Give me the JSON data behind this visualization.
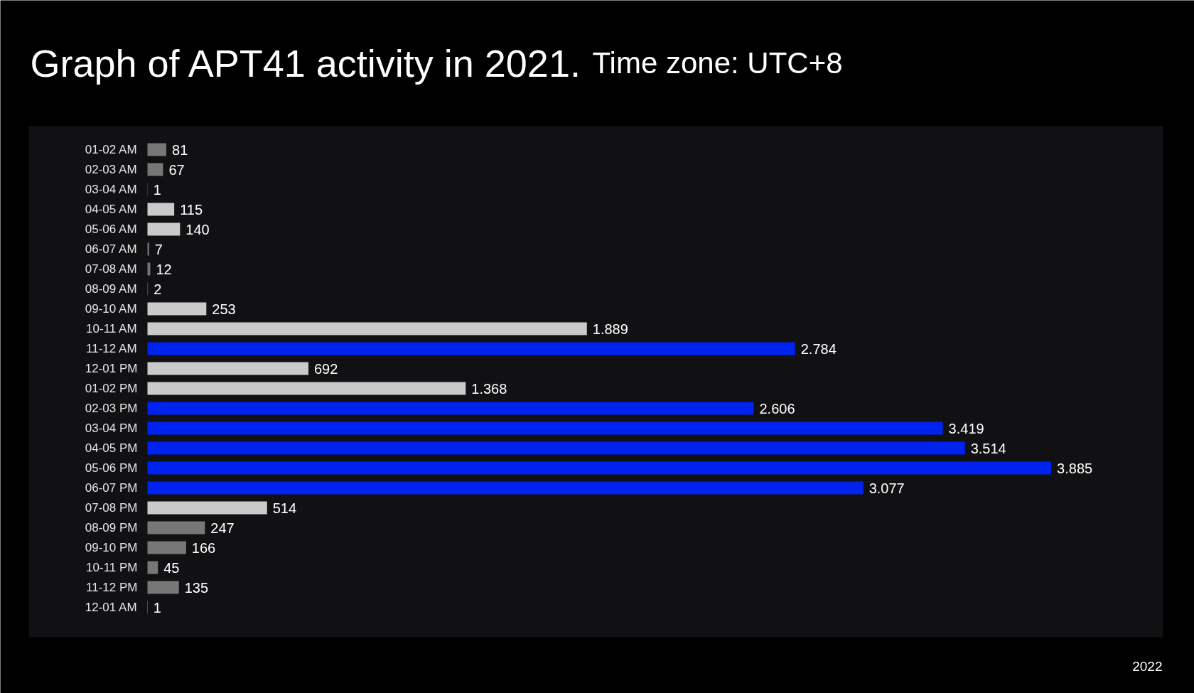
{
  "chart_data": {
    "type": "bar",
    "orientation": "horizontal",
    "title": "Graph of APT41 activity in 2021.",
    "subtitle": "Time zone: UTC+8",
    "categories": [
      "01-02 AM",
      "02-03 AM",
      "03-04 AM",
      "04-05 AM",
      "05-06 AM",
      "06-07 AM",
      "07-08 AM",
      "08-09 AM",
      "09-10 AM",
      "10-11 AM",
      "11-12 AM",
      "12-01 PM",
      "01-02 PM",
      "02-03 PM",
      "03-04 PM",
      "04-05 PM",
      "05-06 PM",
      "06-07 PM",
      "07-08 PM",
      "08-09 PM",
      "09-10 PM",
      "10-11 PM",
      "11-12 PM",
      "12-01 AM"
    ],
    "values": [
      81,
      67,
      1,
      115,
      140,
      7,
      12,
      2,
      253,
      1889,
      2784,
      692,
      1368,
      2606,
      3419,
      3514,
      3885,
      3077,
      514,
      247,
      166,
      45,
      135,
      1
    ],
    "value_labels": [
      "81",
      "67",
      "1",
      "115",
      "140",
      "7",
      "12",
      "2",
      "253",
      "1.889",
      "2.784",
      "692",
      "1.368",
      "2.606",
      "3.419",
      "3.514",
      "3.885",
      "3.077",
      "514",
      "247",
      "166",
      "45",
      "135",
      "1"
    ],
    "colors": [
      "#777777",
      "#777777",
      "#777777",
      "#cacaca",
      "#cacaca",
      "#777777",
      "#777777",
      "#777777",
      "#cacaca",
      "#cacaca",
      "#0022ee",
      "#cacaca",
      "#cacaca",
      "#0022ee",
      "#0022ee",
      "#0022ee",
      "#0022ee",
      "#0022ee",
      "#cacaca",
      "#777777",
      "#777777",
      "#777777",
      "#777777",
      "#cacaca"
    ],
    "annotations": [
      "2022"
    ]
  }
}
